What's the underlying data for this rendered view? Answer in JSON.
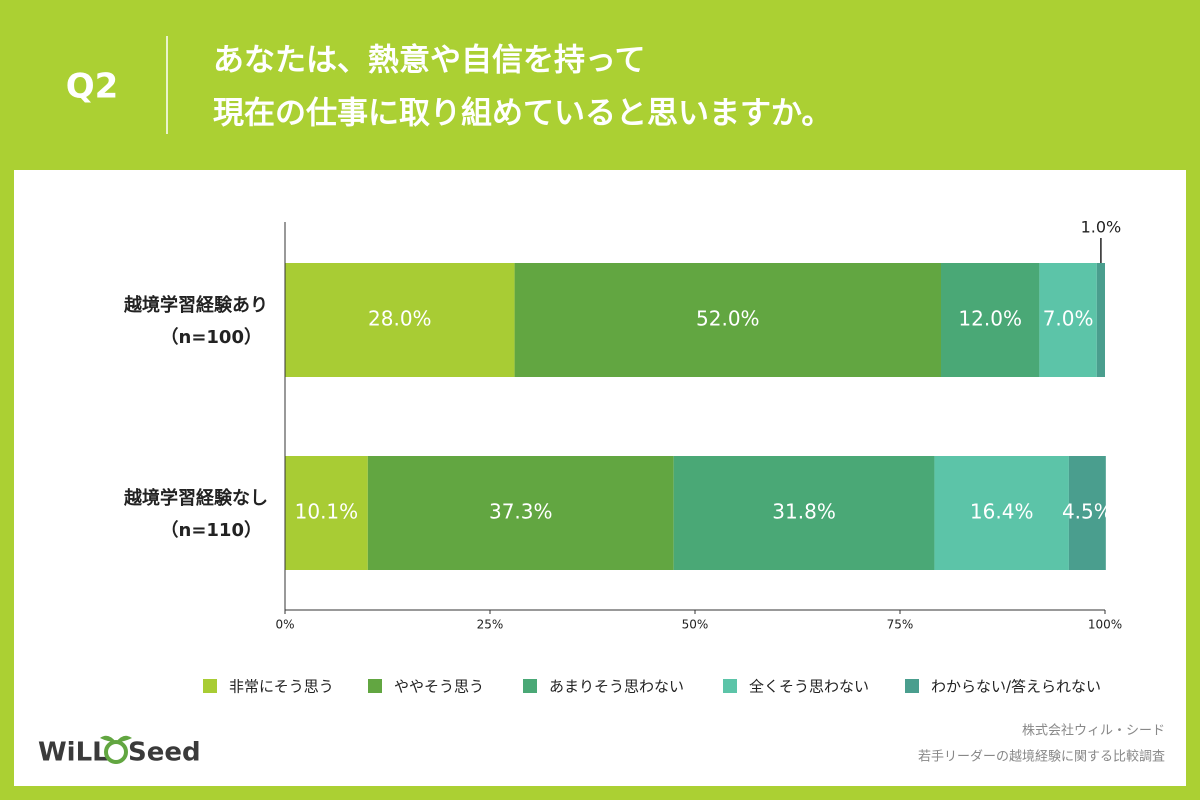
{
  "header": {
    "question": "Q2",
    "title_lines": [
      "あなたは、熱意や自信を持って",
      "現在の仕事に取り組めていると思いますか。"
    ]
  },
  "chart_data": {
    "type": "stacked-barh",
    "categories": [
      "越境学習経験あり",
      "越境学習経験なし"
    ],
    "sample_sizes": [
      "（n=100）",
      "（n=110）"
    ],
    "series": [
      {
        "name": "非常にそう思う",
        "color": "#a8cc34",
        "values": [
          28.0,
          10.1
        ],
        "value_labels": [
          "28.0%",
          "10.1%"
        ]
      },
      {
        "name": "ややそう思う",
        "color": "#62a641",
        "values": [
          52.0,
          37.3
        ],
        "value_labels": [
          "52.0%",
          "37.3%"
        ]
      },
      {
        "name": "あまりそう思わない",
        "color": "#4aa876",
        "values": [
          12.0,
          31.8
        ],
        "value_labels": [
          "12.0%",
          "31.8%"
        ]
      },
      {
        "name": "全くそう思わない",
        "color": "#5cc4a8",
        "values": [
          7.0,
          16.4
        ],
        "value_labels": [
          "7.0%",
          "16.4%"
        ]
      },
      {
        "name": "わからない/答えられない",
        "color": "#4a9e8e",
        "values": [
          1.0,
          4.5
        ],
        "value_labels": [
          "1.0%",
          "4.5%"
        ]
      }
    ],
    "xlim": [
      0,
      100
    ],
    "xticks": [
      {
        "value": 0,
        "label": "0%"
      },
      {
        "value": 25,
        "label": "25%"
      },
      {
        "value": 50,
        "label": "50%"
      },
      {
        "value": 75,
        "label": "75%"
      },
      {
        "value": 100,
        "label": "100%"
      }
    ]
  },
  "footer": {
    "company": "株式会社ウィル・シード",
    "survey": "若手リーダーの越境経験に関する比較調査",
    "logo_left": "WiLL",
    "logo_right": "Seed"
  }
}
